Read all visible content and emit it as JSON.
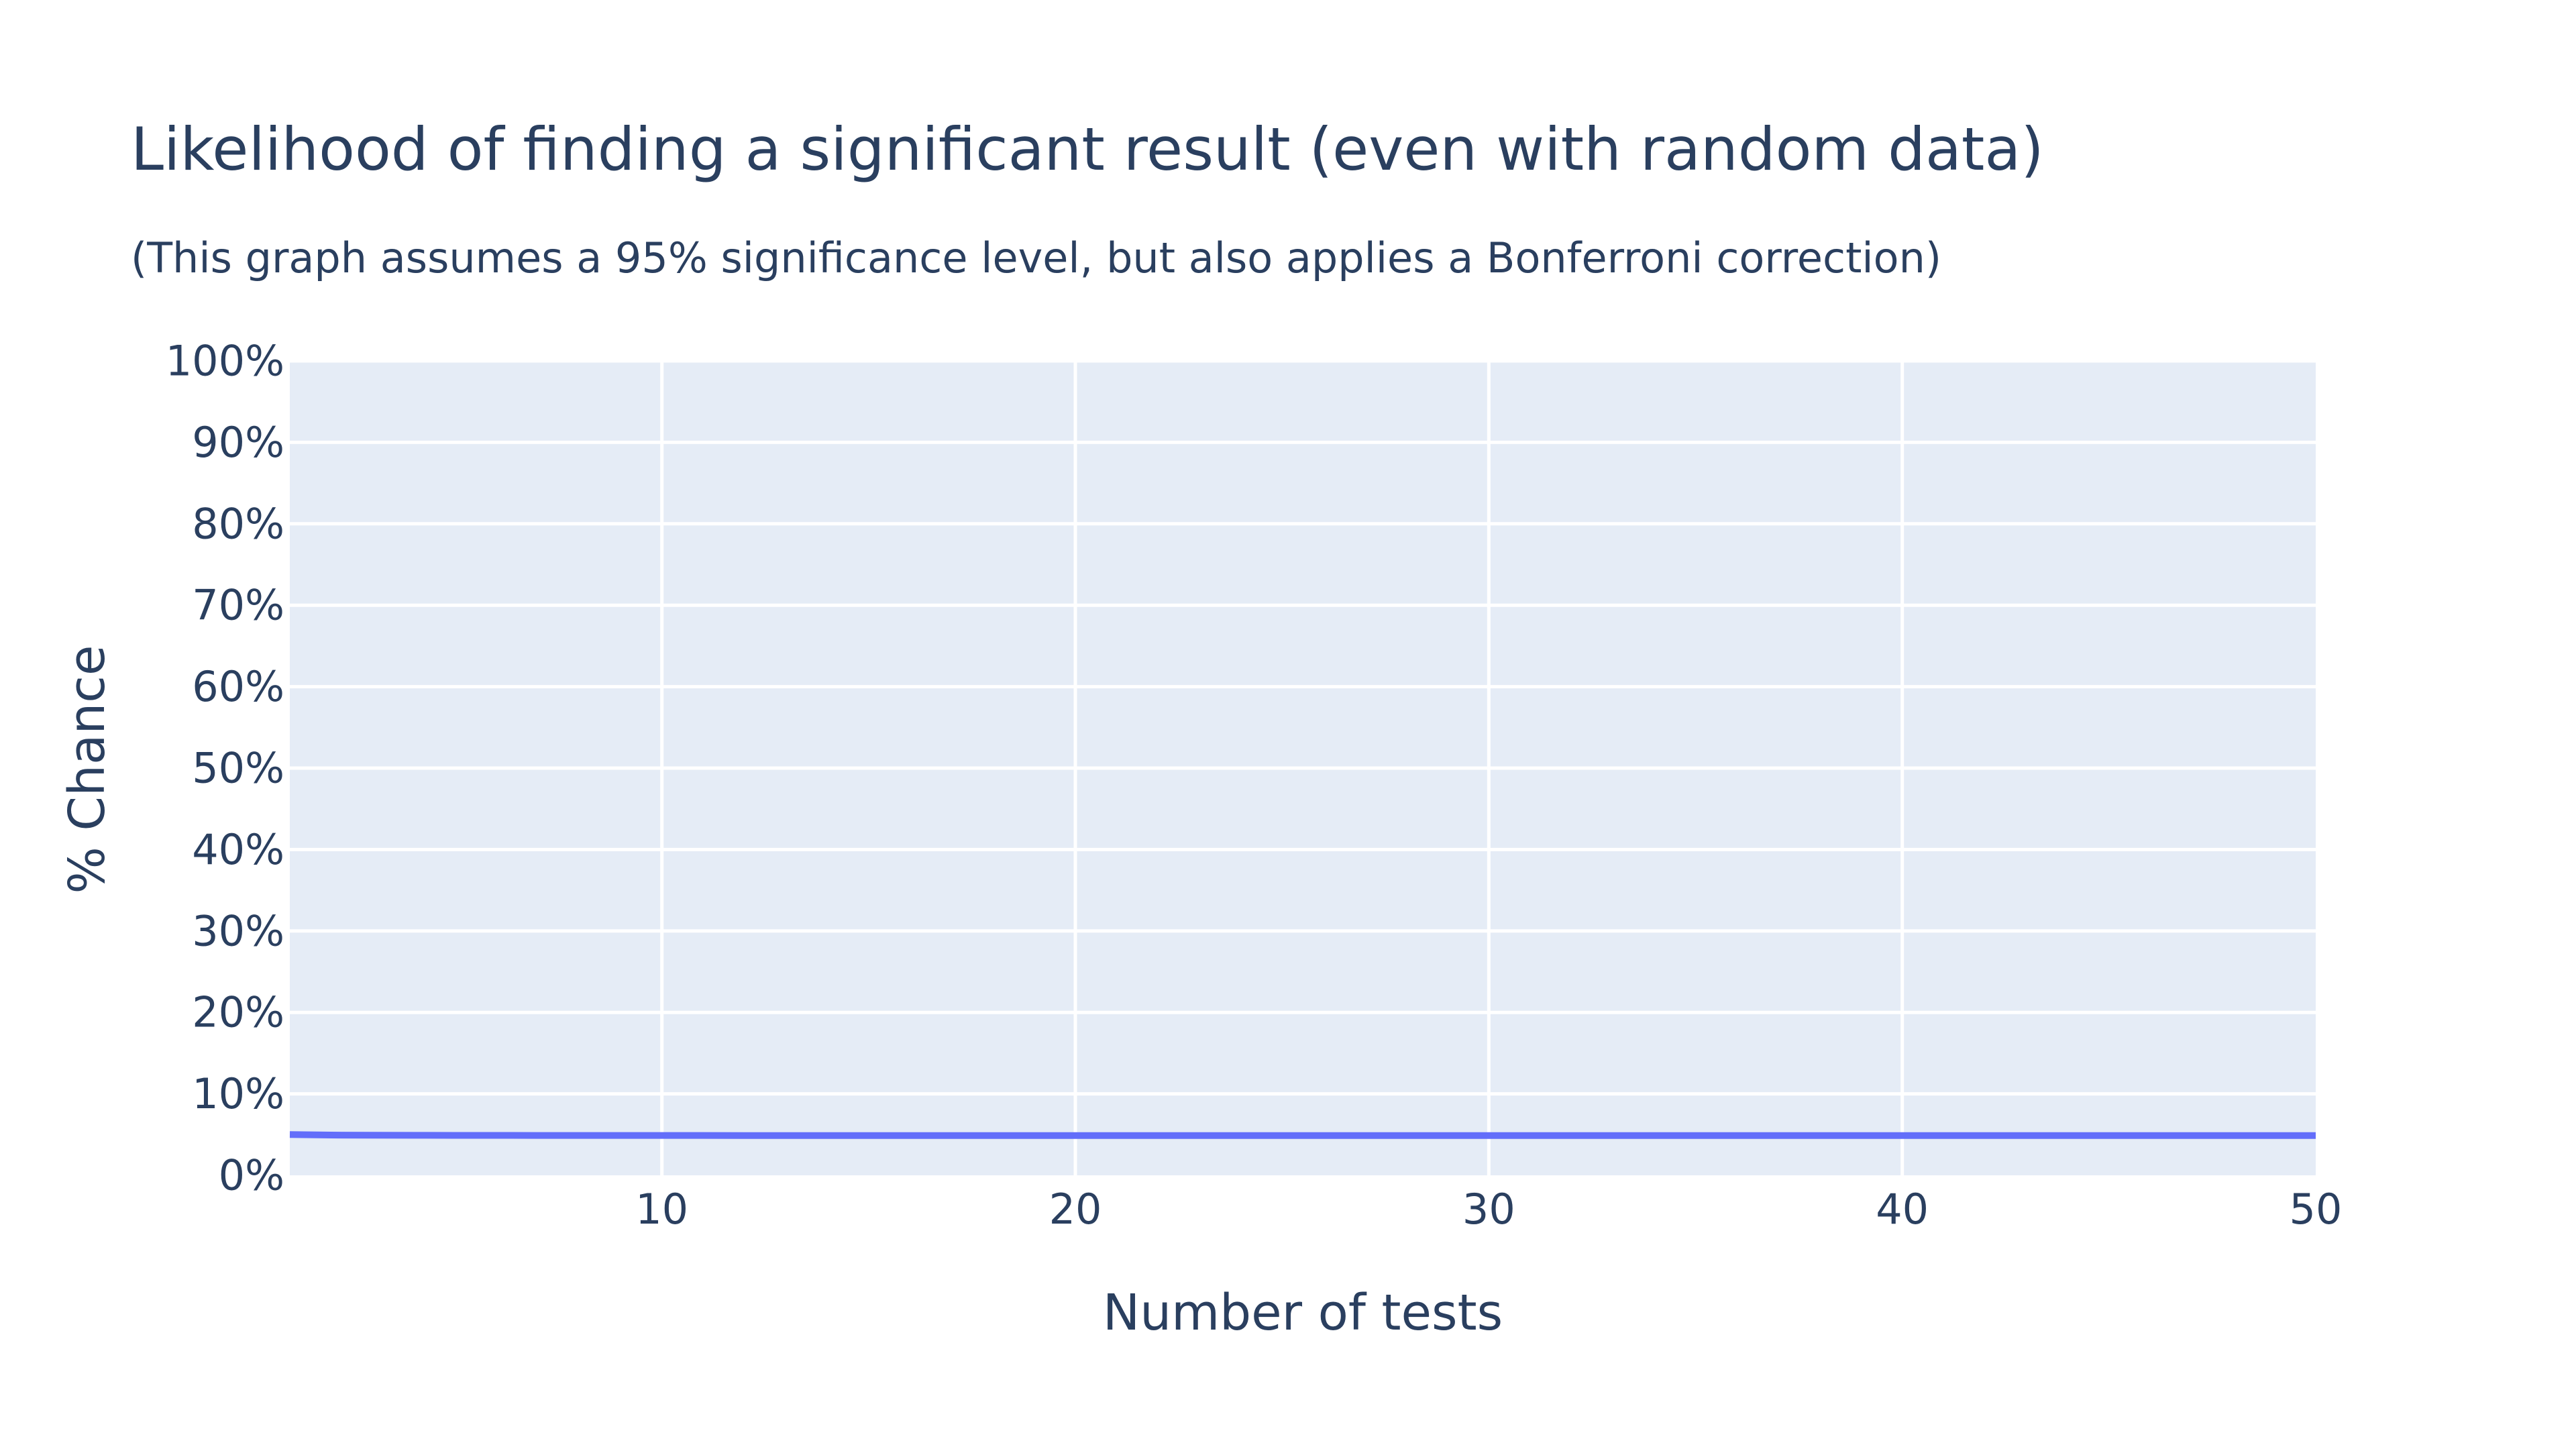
{
  "chart_data": {
    "type": "line",
    "title": "Likelihood of finding a significant result (even with random data)",
    "subtitle": "(This graph assumes a 95% significance level, but also applies a Bonferroni correction)",
    "xlabel": "Number of tests",
    "ylabel": "% Chance",
    "xlim": [
      1,
      50
    ],
    "ylim": [
      0,
      1
    ],
    "x_ticks": [
      10,
      20,
      30,
      40,
      50
    ],
    "x_tick_labels": [
      "10",
      "20",
      "30",
      "40",
      "50"
    ],
    "y_ticks": [
      0,
      0.1,
      0.2,
      0.3,
      0.4,
      0.5,
      0.6,
      0.7,
      0.8,
      0.9,
      1.0
    ],
    "y_tick_labels": [
      "0%",
      "10%",
      "20%",
      "30%",
      "40%",
      "50%",
      "60%",
      "70%",
      "80%",
      "90%",
      "100%"
    ],
    "grid": true,
    "colors": {
      "plot_bg": "#e5ecf6",
      "grid": "#ffffff",
      "line": "#636efa",
      "text": "#2a3f5f"
    },
    "series": [
      {
        "x": [
          1,
          2,
          3,
          4,
          5,
          6,
          7,
          8,
          9,
          10,
          11,
          12,
          13,
          14,
          15,
          16,
          17,
          18,
          19,
          20,
          21,
          22,
          23,
          24,
          25,
          26,
          27,
          28,
          29,
          30,
          31,
          32,
          33,
          34,
          35,
          36,
          37,
          38,
          39,
          40,
          41,
          42,
          43,
          44,
          45,
          46,
          47,
          48,
          49,
          50
        ],
        "y": [
          0.05,
          0.0494,
          0.0492,
          0.0491,
          0.049,
          0.049,
          0.0489,
          0.0489,
          0.0489,
          0.0489,
          0.0489,
          0.0488,
          0.0488,
          0.0488,
          0.0488,
          0.0488,
          0.0488,
          0.0488,
          0.0488,
          0.0488,
          0.0488,
          0.0488,
          0.0488,
          0.0488,
          0.0488,
          0.0488,
          0.0488,
          0.0488,
          0.0488,
          0.0488,
          0.0488,
          0.0488,
          0.0488,
          0.0488,
          0.0488,
          0.0488,
          0.0488,
          0.0488,
          0.0488,
          0.0488,
          0.0488,
          0.0488,
          0.0488,
          0.0488,
          0.0488,
          0.0488,
          0.0488,
          0.0488,
          0.0488,
          0.0488
        ]
      }
    ]
  }
}
